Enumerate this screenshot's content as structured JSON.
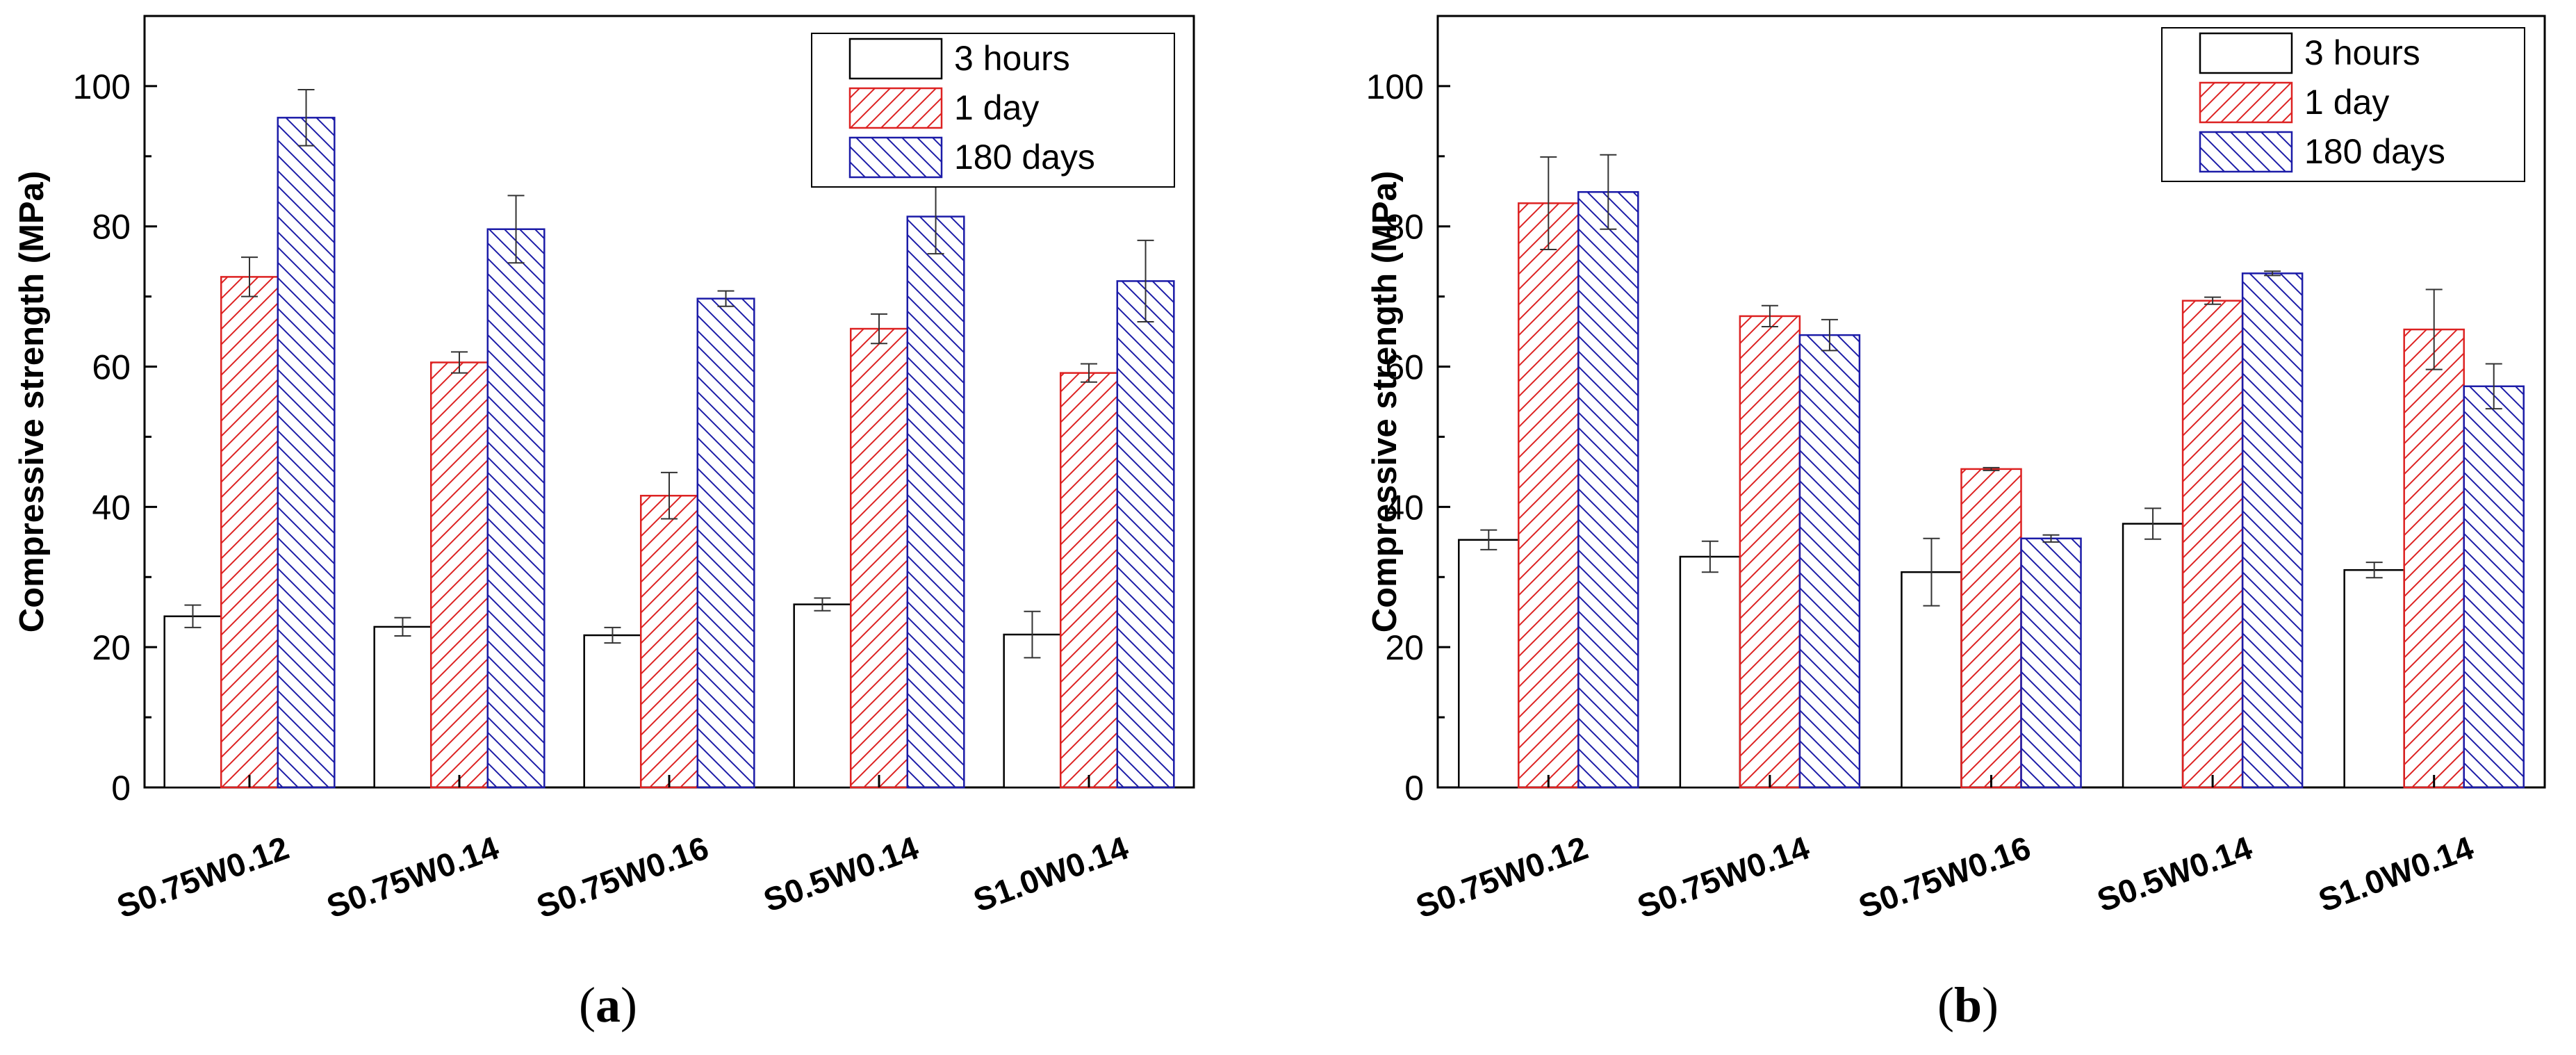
{
  "colors": {
    "axis": "#000000",
    "hours3": "#000000",
    "day1": "#dd2222",
    "days180": "#1c1ca8",
    "errorbar": "#333333"
  },
  "chart_data": [
    {
      "type": "bar",
      "panel_label": "(a)",
      "panel_letter": "a",
      "ylabel": "Compressive strength (MPa)",
      "xlabel": "",
      "ylim": [
        0,
        110
      ],
      "yticks": [
        0,
        20,
        40,
        60,
        80,
        100
      ],
      "grid": false,
      "legend_position": "top-right",
      "categories": [
        "S0.75W0.12",
        "S0.75W0.14",
        "S0.75W0.16",
        "S0.5W0.14",
        "S1.0W0.14"
      ],
      "series": [
        {
          "name": "3 hours",
          "pattern": "none",
          "values": [
            24.4,
            22.9,
            21.7,
            26.1,
            21.8
          ],
          "errors": [
            1.6,
            1.3,
            1.1,
            0.9,
            3.3
          ]
        },
        {
          "name": "1 day",
          "pattern": "hatch-forward",
          "values": [
            72.8,
            60.6,
            41.6,
            65.4,
            59.1
          ],
          "errors": [
            2.8,
            1.5,
            3.3,
            2.1,
            1.3
          ]
        },
        {
          "name": "180 days",
          "pattern": "hatch-backward",
          "values": [
            95.5,
            79.6,
            69.7,
            81.4,
            72.2
          ],
          "errors": [
            4.0,
            4.8,
            1.1,
            5.3,
            5.8
          ]
        }
      ]
    },
    {
      "type": "bar",
      "panel_label": "(b)",
      "panel_letter": "b",
      "ylabel": "Compressive strength (MPa)",
      "xlabel": "",
      "ylim": [
        0,
        110
      ],
      "yticks": [
        0,
        20,
        40,
        60,
        80,
        100
      ],
      "grid": false,
      "legend_position": "top-right",
      "categories": [
        "S0.75W0.12",
        "S0.75W0.14",
        "S0.75W0.16",
        "S0.5W0.14",
        "S1.0W0.14"
      ],
      "series": [
        {
          "name": "3 hours",
          "pattern": "none",
          "values": [
            35.3,
            32.9,
            30.7,
            37.6,
            31.0
          ],
          "errors": [
            1.4,
            2.2,
            4.8,
            2.2,
            1.1
          ]
        },
        {
          "name": "1 day",
          "pattern": "hatch-forward",
          "values": [
            83.3,
            67.2,
            45.4,
            69.4,
            65.3
          ],
          "errors": [
            6.6,
            1.5,
            0.2,
            0.5,
            5.7
          ]
        },
        {
          "name": "180 days",
          "pattern": "hatch-backward",
          "values": [
            84.9,
            64.5,
            35.5,
            73.3,
            57.2
          ],
          "errors": [
            5.3,
            2.2,
            0.5,
            0.3,
            3.2
          ]
        }
      ]
    }
  ]
}
